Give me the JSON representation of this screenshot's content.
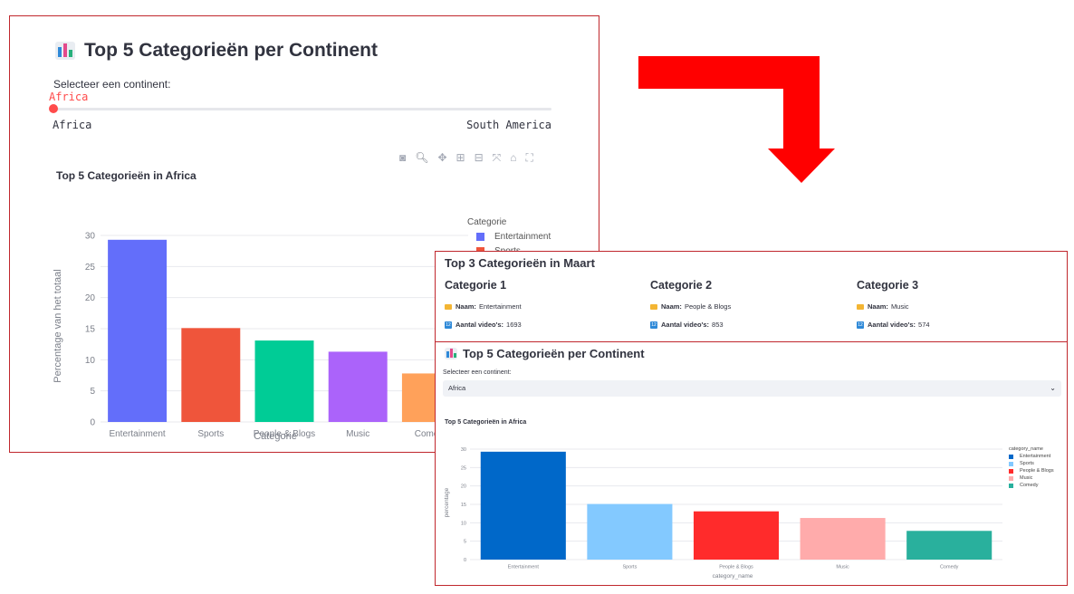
{
  "panel_top": {
    "title": "Top 5 Categorieën per Continent",
    "slider": {
      "label": "Selecteer een continent:",
      "value": "Africa",
      "min_label": "Africa",
      "max_label": "South America",
      "position": 0
    },
    "modebar_icons": [
      "camera-icon",
      "zoom-icon",
      "pan-icon",
      "zoom-in-icon",
      "zoom-out-icon",
      "autoscale-icon",
      "home-icon",
      "fullscreen-icon"
    ],
    "legend_title": "Categorie"
  },
  "panel_summary": {
    "title": "Top 3 Categorieën in Maart",
    "name_label": "Naam:",
    "count_label": "Aantal video's:",
    "categories": [
      {
        "title": "Categorie 1",
        "name": "Entertainment",
        "count": "1693"
      },
      {
        "title": "Categorie 2",
        "name": "People & Blogs",
        "count": "853"
      },
      {
        "title": "Categorie 3",
        "name": "Music",
        "count": "574"
      }
    ]
  },
  "panel_bottom": {
    "title": "Top 5 Categorieën per Continent",
    "select_label": "Selecteer een continent:",
    "select_value": "Africa",
    "legend_title": "category_name"
  },
  "colors": {
    "border": "#c0272d",
    "arrow": "#ff0000",
    "accent": "#ff4b4b"
  },
  "chart_data": [
    {
      "type": "bar",
      "title": "Top 5 Categorieën in Africa",
      "xlabel": "Categorie",
      "ylabel": "Percentage van het totaal",
      "categories": [
        "Entertainment",
        "Sports",
        "People & Blogs",
        "Music",
        "Comedy"
      ],
      "values": [
        29.3,
        15.1,
        13.1,
        11.3,
        7.8
      ],
      "colors": [
        "#636efa",
        "#ef553b",
        "#00cc96",
        "#ab63fa",
        "#ffa15a"
      ],
      "ylim": [
        0,
        30
      ],
      "yticks": [
        0,
        5,
        10,
        15,
        20,
        25,
        30
      ],
      "grid": true,
      "legend": {
        "title": "Categorie",
        "entries": [
          "Entertainment",
          "Sports"
        ],
        "placement": "top-right"
      }
    },
    {
      "type": "bar",
      "title": "Top 5 Categorieën in Africa",
      "xlabel": "category_name",
      "ylabel": "percentage",
      "categories": [
        "Entertainment",
        "Sports",
        "People & Blogs",
        "Music",
        "Comedy"
      ],
      "values": [
        29.3,
        15.1,
        13.1,
        11.3,
        7.8
      ],
      "colors": [
        "#0068c9",
        "#83c9ff",
        "#ff2b2b",
        "#ffabab",
        "#29b09d"
      ],
      "ylim": [
        0,
        30
      ],
      "yticks": [
        0,
        5,
        10,
        15,
        20,
        25,
        30
      ],
      "grid": true,
      "legend": {
        "title": "category_name",
        "entries": [
          "Entertainment",
          "Sports",
          "People & Blogs",
          "Music",
          "Comedy"
        ],
        "placement": "top-right"
      }
    }
  ]
}
